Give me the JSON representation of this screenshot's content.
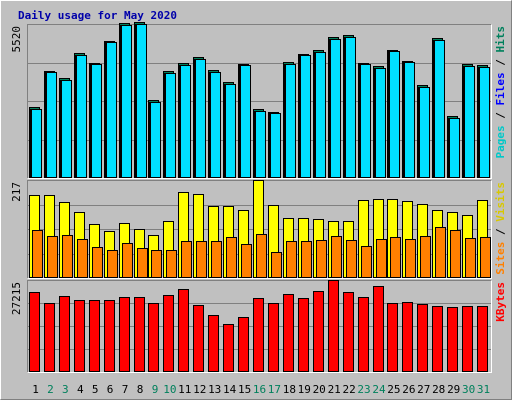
{
  "chart_data": {
    "type": "bar",
    "title": "Daily usage for May 2020",
    "categories": [
      "1",
      "2",
      "3",
      "4",
      "5",
      "6",
      "7",
      "8",
      "9",
      "10",
      "11",
      "12",
      "13",
      "14",
      "15",
      "16",
      "17",
      "18",
      "19",
      "20",
      "21",
      "22",
      "23",
      "24",
      "25",
      "26",
      "27",
      "28",
      "29",
      "30",
      "31"
    ],
    "weekend_days": [
      "2",
      "3",
      "9",
      "10",
      "16",
      "17",
      "23",
      "24",
      "30",
      "31"
    ],
    "panels": [
      {
        "name": "hits-panel",
        "ymax_label": "5520",
        "ymax": 5520,
        "ylabel_parts": [
          "Pages",
          "Files",
          "Hits"
        ],
        "series": [
          {
            "name": "Hits",
            "color": "#00805c",
            "values": [
              2540,
              3850,
              3580,
              4480,
              4130,
              4920,
              5560,
              5590,
              2780,
              3830,
              4120,
              4330,
              3860,
              3440,
              4100,
              2460,
              2380,
              4160,
              4460,
              4580,
              5040,
              5130,
              4130,
              4010,
              4600,
              4210,
              3320,
              5020,
              2210,
              4090,
              4040
            ]
          },
          {
            "name": "Files",
            "color": "#0000ff",
            "values": [
              2480,
              3800,
              3520,
              4420,
              4070,
              4860,
              5500,
              5530,
              2730,
              3780,
              4060,
              4270,
              3800,
              3380,
              4040,
              2400,
              2330,
              4100,
              4400,
              4520,
              4980,
              5070,
              4070,
              3950,
              4540,
              4150,
              3260,
              4960,
              2160,
              4030,
              3980
            ]
          },
          {
            "name": "Pages",
            "color": "#00e0ff",
            "values": [
              2480,
              3800,
              3520,
              4420,
              4070,
              4860,
              5500,
              5530,
              2730,
              3780,
              4060,
              4270,
              3800,
              3380,
              4040,
              2400,
              2330,
              4100,
              4400,
              4520,
              4980,
              5070,
              4070,
              3950,
              4540,
              4150,
              3260,
              4960,
              2160,
              4030,
              3980
            ]
          }
        ]
      },
      {
        "name": "visits-panel",
        "ymax_label": "217",
        "ymax": 217,
        "ylabel_parts": [
          "Sites",
          "Visits"
        ],
        "series": [
          {
            "name": "Visits",
            "color": "#ffff00",
            "values": [
              184,
              184,
              168,
              146,
              120,
              105,
              122,
              108,
              96,
              126,
              191,
              186,
              160,
              160,
              150,
              217,
              162,
              132,
              132,
              130,
              126,
              126,
              172,
              174,
              174,
              170,
              163,
              150,
              146,
              140,
              173
            ]
          },
          {
            "name": "Sites",
            "color": "#ff8000",
            "values": [
              107,
              92,
              95,
              86,
              69,
              63,
              78,
              66,
              62,
              62,
              82,
              82,
              81,
              90,
              76,
              98,
              58,
              82,
              81,
              84,
              92,
              84,
              71,
              86,
              90,
              86,
              93,
              112,
              107,
              88,
              91
            ]
          }
        ]
      },
      {
        "name": "kbytes-panel",
        "ymax_label": "27215",
        "ymax": 27215,
        "ylabel_parts": [
          "KBytes"
        ],
        "series": [
          {
            "name": "KBytes",
            "color": "#ff0000",
            "values": [
              23750,
              20300,
              22400,
              21400,
              21400,
              21400,
              22300,
              22100,
              20300,
              22700,
              24600,
              19700,
              17000,
              14200,
              16300,
              21900,
              20500,
              23000,
              21900,
              23900,
              27300,
              23800,
              22200,
              25300,
              20500,
              20700,
              20000,
              19400,
              19100,
              19400,
              19400
            ]
          }
        ]
      }
    ]
  }
}
